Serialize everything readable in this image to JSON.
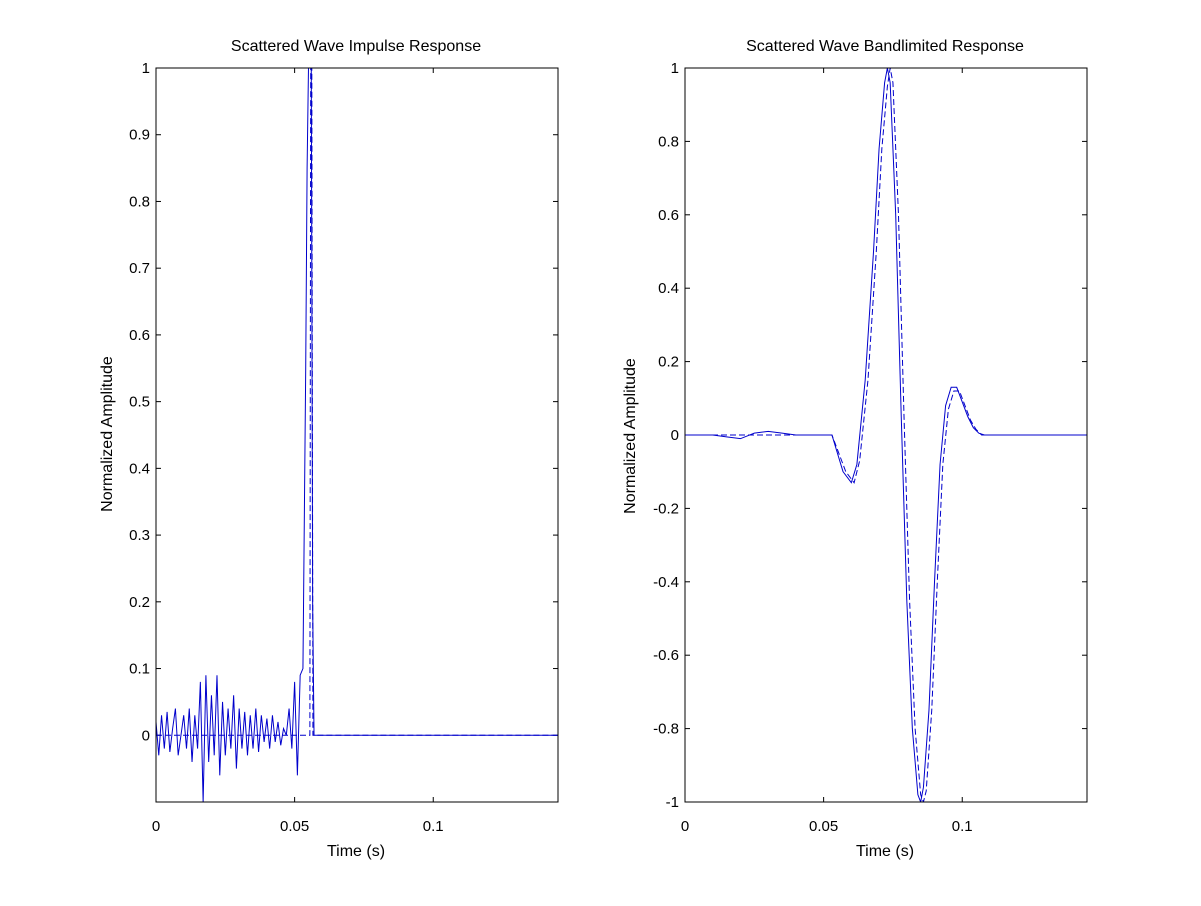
{
  "chart_data": [
    {
      "type": "line",
      "title": "Scattered Wave Impulse Response",
      "xlabel": "Time (s)",
      "ylabel": "Normalized Amplitude",
      "xlim": [
        0,
        0.145
      ],
      "ylim": [
        -0.1,
        1
      ],
      "xticks": [
        0,
        0.05,
        0.1
      ],
      "xtick_labels": [
        "0",
        "0.05",
        "0.1"
      ],
      "yticks": [
        0,
        0.1,
        0.2,
        0.3,
        0.4,
        0.5,
        0.6,
        0.7,
        0.8,
        0.9,
        1
      ],
      "ytick_labels": [
        "0",
        "0.1",
        "0.2",
        "0.3",
        "0.4",
        "0.5",
        "0.6",
        "0.7",
        "0.8",
        "0.9",
        "1"
      ],
      "grid": false,
      "series": [
        {
          "style": "solid",
          "color": "#0000cc",
          "x": [
            0,
            0.001,
            0.002,
            0.003,
            0.004,
            0.005,
            0.006,
            0.007,
            0.008,
            0.009,
            0.01,
            0.011,
            0.012,
            0.013,
            0.014,
            0.015,
            0.016,
            0.017,
            0.018,
            0.019,
            0.02,
            0.021,
            0.022,
            0.023,
            0.024,
            0.025,
            0.026,
            0.027,
            0.028,
            0.029,
            0.03,
            0.031,
            0.032,
            0.033,
            0.034,
            0.035,
            0.036,
            0.037,
            0.038,
            0.039,
            0.04,
            0.041,
            0.042,
            0.043,
            0.044,
            0.045,
            0.046,
            0.047,
            0.048,
            0.049,
            0.05,
            0.051,
            0.052,
            0.053,
            0.054,
            0.0545,
            0.055,
            0.0555,
            0.056,
            0.0565,
            0.057,
            0.058,
            0.145
          ],
          "y": [
            0.02,
            -0.03,
            0.03,
            -0.02,
            0.035,
            -0.025,
            0.01,
            0.04,
            -0.03,
            0.0,
            0.03,
            -0.02,
            0.04,
            -0.04,
            0.03,
            -0.02,
            0.08,
            -0.1,
            0.09,
            -0.04,
            0.06,
            -0.03,
            0.09,
            -0.06,
            0.05,
            -0.03,
            0.04,
            -0.02,
            0.06,
            -0.05,
            0.04,
            -0.02,
            0.035,
            -0.03,
            0.03,
            -0.02,
            0.04,
            -0.025,
            0.03,
            -0.01,
            0.025,
            -0.02,
            0.03,
            -0.01,
            0.02,
            -0.015,
            0.01,
            0.0,
            0.04,
            -0.02,
            0.08,
            -0.06,
            0.09,
            0.1,
            0.55,
            0.85,
            1.0,
            1.0,
            1.0,
            0.2,
            0.0,
            0.0,
            0.0
          ]
        },
        {
          "style": "dashed",
          "color": "#0000cc",
          "x": [
            0,
            0.0555,
            0.0558,
            0.0562,
            0.0566,
            0.145
          ],
          "y": [
            0,
            0,
            1.0,
            1.0,
            0,
            0
          ]
        }
      ]
    },
    {
      "type": "line",
      "title": "Scattered Wave Bandlimited  Response",
      "xlabel": "Time (s)",
      "ylabel": "Normalized Amplitude",
      "xlim": [
        0,
        0.145
      ],
      "ylim": [
        -1,
        1
      ],
      "xticks": [
        0,
        0.05,
        0.1
      ],
      "xtick_labels": [
        "0",
        "0.05",
        "0.1"
      ],
      "yticks": [
        -1,
        -0.8,
        -0.6,
        -0.4,
        -0.2,
        0,
        0.2,
        0.4,
        0.6,
        0.8,
        1
      ],
      "ytick_labels": [
        "-1",
        "-0.8",
        "-0.6",
        "-0.4",
        "-0.2",
        "0",
        "0.2",
        "0.4",
        "0.6",
        "0.8",
        "1"
      ],
      "grid": false,
      "series": [
        {
          "style": "solid",
          "color": "#0000cc",
          "x": [
            0,
            0.005,
            0.01,
            0.015,
            0.02,
            0.025,
            0.03,
            0.035,
            0.04,
            0.045,
            0.05,
            0.053,
            0.055,
            0.057,
            0.06,
            0.062,
            0.065,
            0.068,
            0.07,
            0.072,
            0.073,
            0.074,
            0.076,
            0.078,
            0.08,
            0.082,
            0.084,
            0.085,
            0.086,
            0.088,
            0.09,
            0.092,
            0.094,
            0.096,
            0.098,
            0.1,
            0.102,
            0.104,
            0.106,
            0.108,
            0.11,
            0.115,
            0.145
          ],
          "y": [
            0.0,
            0.0,
            0.0,
            -0.005,
            -0.01,
            0.005,
            0.01,
            0.005,
            0.0,
            0.0,
            0.0,
            0.0,
            -0.05,
            -0.1,
            -0.13,
            -0.08,
            0.15,
            0.5,
            0.78,
            0.96,
            1.0,
            0.96,
            0.6,
            0.05,
            -0.45,
            -0.8,
            -0.98,
            -1.0,
            -0.96,
            -0.75,
            -0.4,
            -0.08,
            0.08,
            0.13,
            0.13,
            0.09,
            0.05,
            0.02,
            0.005,
            0.0,
            0.0,
            0.0,
            0.0
          ]
        },
        {
          "style": "dashed",
          "color": "#0000cc",
          "x": [
            0,
            0.01,
            0.02,
            0.03,
            0.04,
            0.05,
            0.053,
            0.055,
            0.058,
            0.061,
            0.063,
            0.066,
            0.069,
            0.071,
            0.073,
            0.074,
            0.075,
            0.077,
            0.079,
            0.081,
            0.083,
            0.085,
            0.086,
            0.087,
            0.089,
            0.091,
            0.093,
            0.095,
            0.097,
            0.099,
            0.101,
            0.103,
            0.105,
            0.107,
            0.109,
            0.112,
            0.145
          ],
          "y": [
            0,
            0,
            0,
            0,
            0,
            0,
            0,
            -0.04,
            -0.1,
            -0.13,
            -0.07,
            0.15,
            0.5,
            0.78,
            0.95,
            1.0,
            0.96,
            0.6,
            0.05,
            -0.45,
            -0.8,
            -0.98,
            -1.0,
            -0.97,
            -0.75,
            -0.4,
            -0.08,
            0.07,
            0.12,
            0.12,
            0.08,
            0.04,
            0.015,
            0.0,
            0.0,
            0.0,
            0.0
          ]
        }
      ]
    }
  ]
}
